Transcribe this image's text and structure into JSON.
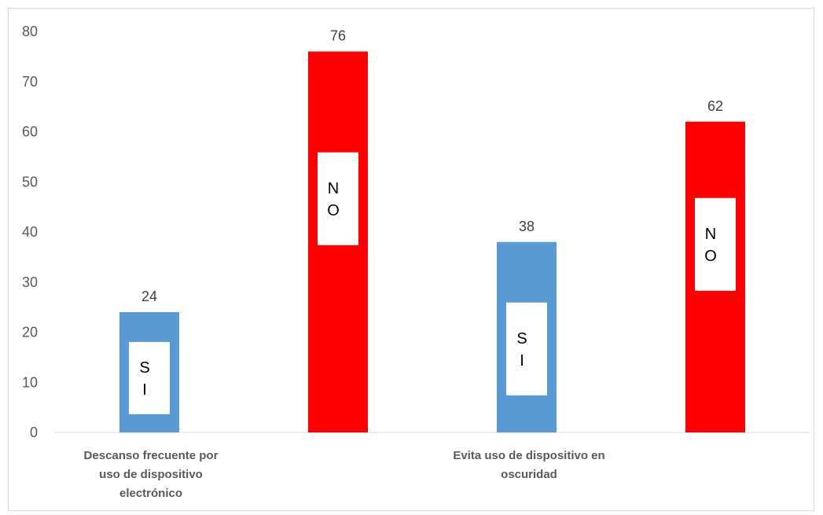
{
  "chart_data": {
    "type": "bar",
    "title": "",
    "xlabel": "",
    "ylabel": "",
    "ylim": [
      0,
      80
    ],
    "yticks": [
      0,
      10,
      20,
      30,
      40,
      50,
      60,
      70,
      80
    ],
    "grid": false,
    "legend": "none",
    "categories": [
      [
        "Descanso frecuente por",
        "uso de dispositivo",
        "electrónico"
      ],
      [
        "Evita uso de dispositivo en",
        "oscuridad"
      ]
    ],
    "bars": [
      {
        "category_index": 0,
        "value": 24,
        "label": "24",
        "inbar_lines": [
          "S",
          "I"
        ],
        "color": "#5b9bd5"
      },
      {
        "category_index": 0,
        "value": 76,
        "label": "76",
        "inbar_lines": [
          "N",
          "O"
        ],
        "color": "#ff0000"
      },
      {
        "category_index": 1,
        "value": 38,
        "label": "38",
        "inbar_lines": [
          "S",
          "I"
        ],
        "color": "#5b9bd5"
      },
      {
        "category_index": 1,
        "value": 62,
        "label": "62",
        "inbar_lines": [
          "N",
          "O"
        ],
        "color": "#ff0000"
      }
    ],
    "axis_color": "#d9d9d9"
  }
}
